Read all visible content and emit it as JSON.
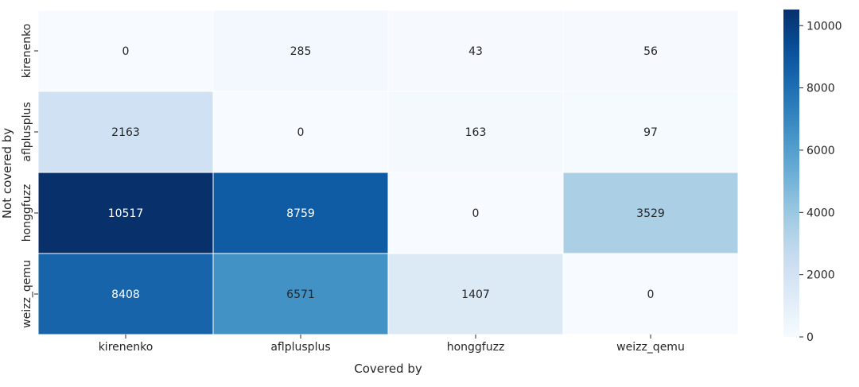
{
  "chart_data": {
    "type": "heatmap",
    "xlabel": "Covered by",
    "ylabel": "Not covered by",
    "x_categories": [
      "kirenenko",
      "aflplusplus",
      "honggfuzz",
      "weizz_qemu"
    ],
    "y_categories": [
      "kirenenko",
      "aflplusplus",
      "honggfuzz",
      "weizz_qemu"
    ],
    "values": [
      [
        0,
        285,
        43,
        56
      ],
      [
        2163,
        0,
        163,
        97
      ],
      [
        10517,
        8759,
        0,
        3529
      ],
      [
        8408,
        6571,
        1407,
        0
      ]
    ],
    "colorbar": {
      "min": 0,
      "max": 10517,
      "ticks": [
        0,
        2000,
        4000,
        6000,
        8000,
        10000
      ],
      "colormap": "Blues",
      "low_color": "#f7fbff",
      "high_color": "#08306b"
    },
    "grid": false,
    "legend": "colorbar-right"
  }
}
